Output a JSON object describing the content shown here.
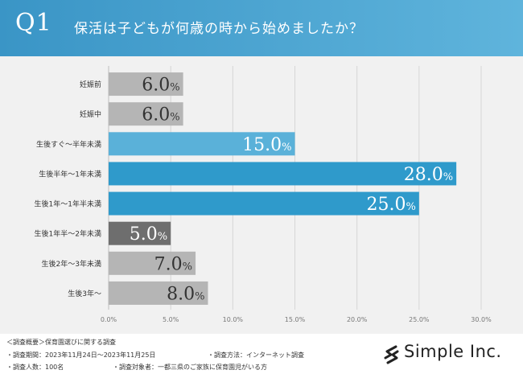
{
  "header": {
    "q_number": "Q1",
    "question": "保活は子どもが何歳の時から始めましたか？",
    "colors": {
      "banner_start": "#3a95c6",
      "banner_end": "#5fb4dc"
    }
  },
  "chart_data": {
    "type": "bar",
    "orientation": "horizontal",
    "categories": [
      "妊娠前",
      "妊娠中",
      "生後すぐ～半年未満",
      "生後半年～1年未満",
      "生後1年～1年半未満",
      "生後1年半～2年未満",
      "生後2年～3年未満",
      "生後3年～"
    ],
    "values": [
      6.0,
      6.0,
      15.0,
      28.0,
      25.0,
      5.0,
      7.0,
      8.0
    ],
    "value_labels": [
      "6.0",
      "6.0",
      "15.0",
      "28.0",
      "25.0",
      "5.0",
      "7.0",
      "8.0"
    ],
    "unit": "%",
    "x_ticks": [
      "0.0%",
      "5.0%",
      "10.0%",
      "15.0%",
      "20.0%",
      "25.0%",
      "30.0%"
    ],
    "xlim": [
      0,
      30
    ],
    "grid": true,
    "bar_colors": [
      "#b5b5b5",
      "#b5b5b5",
      "#5ab1d9",
      "#2f9acb",
      "#2f9acb",
      "#6e6e6e",
      "#b5b5b5",
      "#b5b5b5"
    ],
    "label_colors": [
      "#333333",
      "#333333",
      "#ffffff",
      "#ffffff",
      "#ffffff",
      "#ffffff",
      "#333333",
      "#333333"
    ]
  },
  "footer": {
    "line1": "＜調査概要＞保育園選びに関する調査",
    "line2a": "・調査期間：2023年11月24日～2023年11月25日",
    "line2b": "・調査方法：インターネット調査",
    "line3a": "・調査人数：100名",
    "line3b": "・調査対象者：一都三県のご家族に保育園児がいる方"
  },
  "logo": {
    "name": "Simple Inc.",
    "icon": "simple-s-logo-icon"
  }
}
